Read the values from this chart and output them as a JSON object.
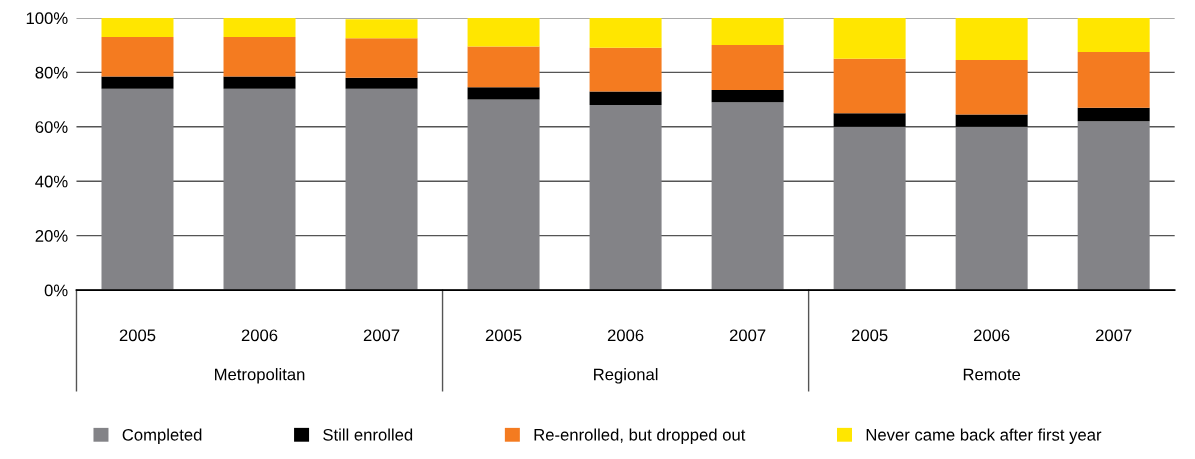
{
  "chart_data": {
    "type": "bar",
    "stacked": true,
    "categories": [
      "2005",
      "2006",
      "2007",
      "2005",
      "2006",
      "2007",
      "2005",
      "2006",
      "2007"
    ],
    "annotations": [
      "Metropolitan",
      "Regional",
      "Remote"
    ],
    "series": [
      {
        "name": "Completed",
        "color": "#838387",
        "values": [
          74,
          74,
          74,
          70,
          68,
          69,
          60,
          60,
          62
        ]
      },
      {
        "name": "Still enrolled",
        "color": "#000000",
        "values": [
          4.5,
          4.5,
          4,
          4.5,
          5,
          4.5,
          5,
          4.5,
          5
        ]
      },
      {
        "name": "Re-enrolled, but dropped out",
        "color": "#f47b20",
        "values": [
          14.5,
          14.5,
          14.5,
          15,
          16,
          16.5,
          20,
          20,
          20.5
        ]
      },
      {
        "name": "Never came back after first year",
        "color": "#ffe600",
        "values": [
          7,
          7,
          7,
          10.5,
          11,
          10,
          15,
          15.5,
          12.5
        ]
      }
    ],
    "ylim": [
      0,
      100
    ],
    "yticks": [
      {
        "value": 0,
        "label": "0%"
      },
      {
        "value": 20,
        "label": "20%"
      },
      {
        "value": 40,
        "label": "40%"
      },
      {
        "value": 60,
        "label": "60%"
      },
      {
        "value": 80,
        "label": "80%"
      },
      {
        "value": 100,
        "label": "100%"
      }
    ],
    "grid": "y",
    "legend": "bottom"
  }
}
